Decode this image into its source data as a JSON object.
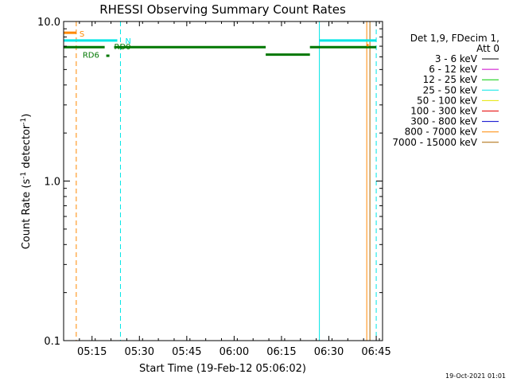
{
  "chart_data": {
    "type": "line",
    "title": "RHESSI Observing Summary Count Rates",
    "xlabel": "Start Time (19-Feb-12 05:06:02)",
    "ylabel_main": "Count Rate (s",
    "ylabel_sup1": "-1",
    "ylabel_mid": " detector",
    "ylabel_sup2": "-1",
    "ylabel_end": ")",
    "yscale": "log",
    "ylim": [
      0.1,
      10.0
    ],
    "xlim": [
      "05:06",
      "06:47"
    ],
    "x_ticks": [
      "05:15",
      "05:30",
      "05:45",
      "06:00",
      "06:15",
      "06:30",
      "06:45"
    ],
    "y_ticks": [
      "10.0",
      "1.0",
      "0.1"
    ],
    "legend_header": [
      "Det 1,9, FDecim 1,",
      "Att 0"
    ],
    "legend": [
      {
        "label": "3 - 6 keV",
        "color": "#000000"
      },
      {
        "label": "6 - 12 keV",
        "color": "#cc00cc"
      },
      {
        "label": "12 - 25 keV",
        "color": "#00cc00"
      },
      {
        "label": "25 - 50 keV",
        "color": "#00e5e5"
      },
      {
        "label": "50 - 100 keV",
        "color": "#e5e500"
      },
      {
        "label": "100 - 300 keV",
        "color": "#e50000"
      },
      {
        "label": "300 - 800 keV",
        "color": "#0000cc"
      },
      {
        "label": "800 - 7000 keV",
        "color": "#ff8800"
      },
      {
        "label": "7000 - 15000 keV",
        "color": "#aa6600"
      }
    ],
    "series": [
      {
        "color": "#007700",
        "segments": [
          {
            "x": [
              "05:06",
              "05:19"
            ],
            "y": 6.9
          },
          {
            "x": [
              "05:19.5",
              "05:20.5"
            ],
            "y": 6.1
          },
          {
            "x": [
              "05:22",
              "06:10"
            ],
            "y": 6.9
          },
          {
            "x": [
              "06:10",
              "06:24"
            ],
            "y": 6.2
          },
          {
            "x": [
              "06:24",
              "06:45"
            ],
            "y": 6.9
          }
        ]
      },
      {
        "color": "#00e5e5",
        "segments": [
          {
            "x": [
              "05:06",
              "05:23"
            ],
            "y": 7.6
          },
          {
            "x": [
              "06:27",
              "06:45"
            ],
            "y": 7.6
          }
        ]
      }
    ],
    "flag_bars": [
      {
        "color": "#ff8800",
        "x": [
          "05:06",
          "05:10"
        ],
        "y": 8.5
      },
      {
        "color": "#ff8800",
        "x": [
          "06:42",
          "06:42.6"
        ],
        "y": 7.1
      }
    ],
    "vlines": [
      {
        "x": "05:06",
        "color": "#00e5e5",
        "style": "solid"
      },
      {
        "x": "05:10",
        "color": "#ff8800",
        "style": "dash"
      },
      {
        "x": "05:24",
        "color": "#00e5e5",
        "style": "dash"
      },
      {
        "x": "06:27",
        "color": "#00e5e5",
        "style": "solid"
      },
      {
        "x": "06:42",
        "color": "#ff8800",
        "style": "solid"
      },
      {
        "x": "06:43",
        "color": "#aa6600",
        "style": "solid"
      },
      {
        "x": "06:45",
        "color": "#00e5e5",
        "style": "dash"
      }
    ],
    "annotations": [
      {
        "text": "S",
        "x": "05:11",
        "y": 8.4,
        "color": "#ff8800"
      },
      {
        "text": "N",
        "x": "05:25.5",
        "y": 7.6,
        "color": "#00e5e5"
      },
      {
        "text": "RD0",
        "x": "05:22",
        "y": 7.0,
        "color": "#007700"
      },
      {
        "text": "RD6",
        "x": "05:12",
        "y": 6.2,
        "color": "#007700"
      }
    ],
    "footer_date": "19-Oct-2021 01:01"
  }
}
